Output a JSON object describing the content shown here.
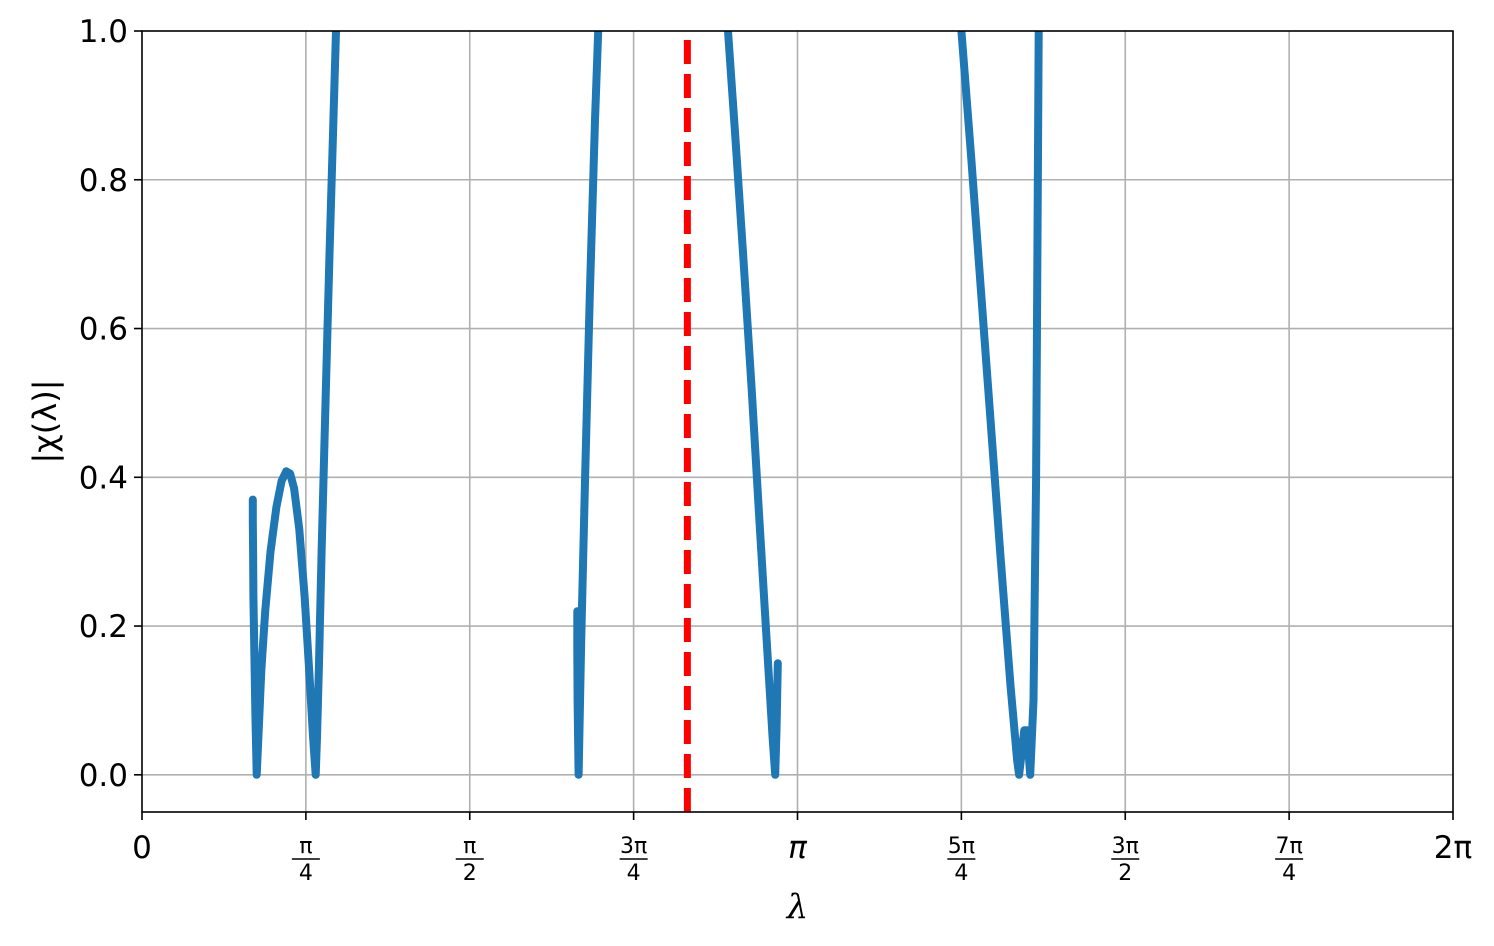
{
  "chart_data": {
    "type": "line",
    "xlabel": "λ",
    "ylabel": "|χ(λ)|",
    "xlim_over_pi": [
      0,
      2
    ],
    "ylim": [
      -0.05,
      1.0
    ],
    "grid": true,
    "x_ticks": [
      {
        "value_over_pi": 0,
        "label": "0",
        "kind": "plain"
      },
      {
        "value_over_pi": 0.25,
        "numerator": "π",
        "denominator": "4",
        "kind": "frac"
      },
      {
        "value_over_pi": 0.5,
        "numerator": "π",
        "denominator": "2",
        "kind": "frac"
      },
      {
        "value_over_pi": 0.75,
        "numerator": "3π",
        "denominator": "4",
        "kind": "frac"
      },
      {
        "value_over_pi": 1.0,
        "label": "π",
        "kind": "italic"
      },
      {
        "value_over_pi": 1.25,
        "numerator": "5π",
        "denominator": "4",
        "kind": "frac"
      },
      {
        "value_over_pi": 1.5,
        "numerator": "3π",
        "denominator": "2",
        "kind": "frac"
      },
      {
        "value_over_pi": 1.75,
        "numerator": "7π",
        "denominator": "4",
        "kind": "frac"
      },
      {
        "value_over_pi": 2.0,
        "label": "2π",
        "kind": "plain"
      }
    ],
    "y_ticks": [
      {
        "value": 0.0,
        "label": "0.0"
      },
      {
        "value": 0.2,
        "label": "0.2"
      },
      {
        "value": 0.4,
        "label": "0.4"
      },
      {
        "value": 0.6,
        "label": "0.6"
      },
      {
        "value": 0.8,
        "label": "0.8"
      },
      {
        "value": 1.0,
        "label": "1.0"
      }
    ],
    "series": [
      {
        "color": "#1f77b4",
        "segments": [
          [
            [
              0.169,
              0.37
            ],
            [
              0.169,
              0.34
            ],
            [
              0.1695,
              0.3
            ],
            [
              0.17,
              0.24
            ],
            [
              0.1715,
              0.16
            ],
            [
              0.173,
              0.08
            ],
            [
              0.175,
              0.0
            ],
            [
              0.178,
              0.06
            ],
            [
              0.182,
              0.14
            ],
            [
              0.188,
              0.22
            ],
            [
              0.196,
              0.3
            ],
            [
              0.205,
              0.36
            ],
            [
              0.213,
              0.395
            ],
            [
              0.22,
              0.408
            ],
            [
              0.226,
              0.405
            ],
            [
              0.232,
              0.385
            ],
            [
              0.24,
              0.33
            ],
            [
              0.248,
              0.24
            ],
            [
              0.255,
              0.14
            ],
            [
              0.261,
              0.05
            ],
            [
              0.265,
              0.0
            ],
            [
              0.267,
              0.05
            ],
            [
              0.27,
              0.15
            ],
            [
              0.274,
              0.3
            ],
            [
              0.28,
              0.5
            ],
            [
              0.286,
              0.7
            ],
            [
              0.292,
              0.88
            ],
            [
              0.296,
              1.0
            ]
          ],
          [
            [
              0.664,
              0.22
            ],
            [
              0.664,
              0.17
            ],
            [
              0.6645,
              0.1
            ],
            [
              0.666,
              0.0
            ],
            [
              0.67,
              0.18
            ],
            [
              0.676,
              0.4
            ],
            [
              0.683,
              0.64
            ],
            [
              0.691,
              0.88
            ],
            [
              0.696,
              1.0
            ]
          ],
          [
            [
              0.894,
              1.0
            ],
            [
              0.905,
              0.86
            ],
            [
              0.917,
              0.7
            ],
            [
              0.93,
              0.52
            ],
            [
              0.942,
              0.34
            ],
            [
              0.953,
              0.18
            ],
            [
              0.962,
              0.05
            ],
            [
              0.966,
              0.0
            ],
            [
              0.968,
              0.06
            ],
            [
              0.97,
              0.15
            ]
          ],
          [
            [
              1.25,
              1.0
            ],
            [
              1.265,
              0.83
            ],
            [
              1.28,
              0.65
            ],
            [
              1.295,
              0.47
            ],
            [
              1.31,
              0.29
            ],
            [
              1.325,
              0.12
            ],
            [
              1.335,
              0.02
            ],
            [
              1.338,
              0.0
            ],
            [
              1.342,
              0.03
            ],
            [
              1.346,
              0.06
            ],
            [
              1.35,
              0.06
            ],
            [
              1.355,
              0.0
            ],
            [
              1.36,
              0.1
            ],
            [
              1.364,
              0.4
            ],
            [
              1.366,
              0.7
            ],
            [
              1.368,
              1.0
            ]
          ]
        ]
      }
    ],
    "reference_line": {
      "x_over_pi": 0.832,
      "color": "#ff0000",
      "style": "dashed"
    }
  }
}
